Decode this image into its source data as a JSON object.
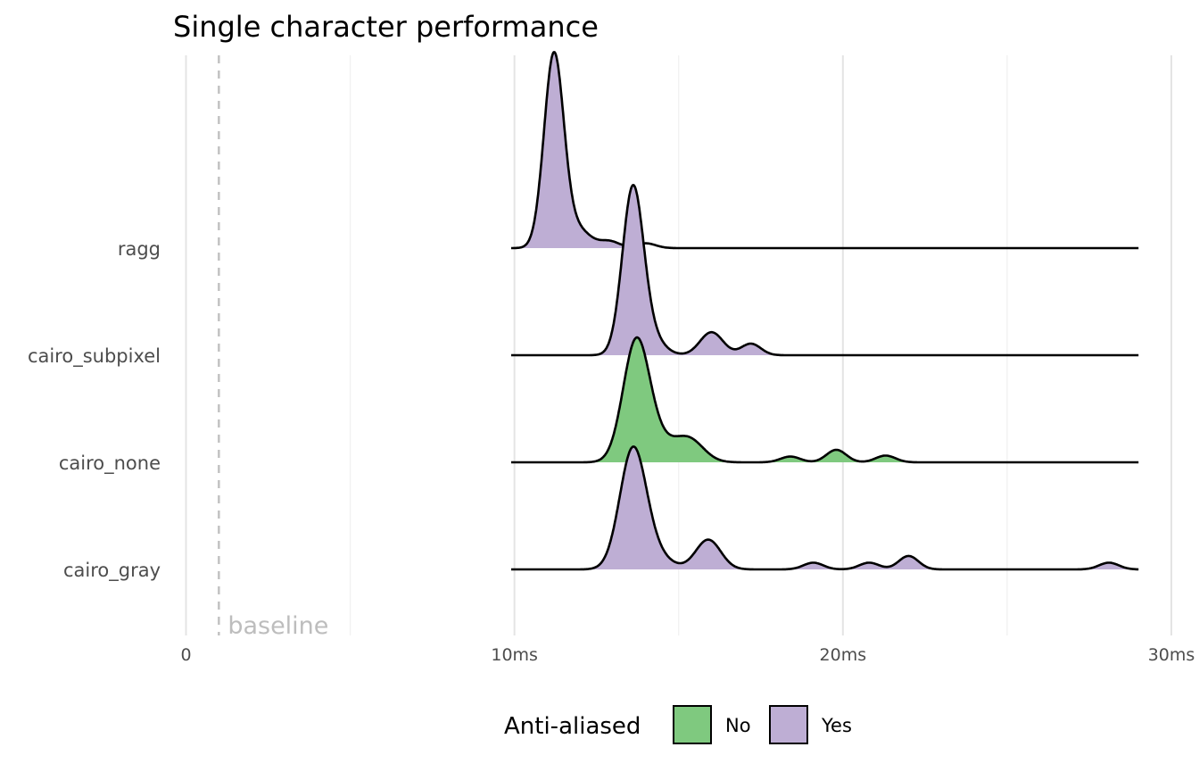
{
  "chart_data": {
    "type": "ridgeline",
    "title": "Single character performance",
    "xlabel": "",
    "ylabel": "",
    "xlim": [
      0,
      30
    ],
    "x_ticks": [
      {
        "value": 0,
        "label": "0"
      },
      {
        "value": 10,
        "label": "10ms"
      },
      {
        "value": 20,
        "label": "20ms"
      },
      {
        "value": 30,
        "label": "30ms"
      }
    ],
    "x_minor": [
      5,
      15,
      25
    ],
    "grid": true,
    "baseline": {
      "value": 1.0,
      "label": "baseline"
    },
    "legend": {
      "title": "Anti-aliased",
      "position": "bottom",
      "items": [
        {
          "label": "No",
          "color": "#7fc97f"
        },
        {
          "label": "Yes",
          "color": "#beaed4"
        }
      ]
    },
    "series": [
      {
        "name": "ragg",
        "anti_aliased": "Yes",
        "fill_range": [
          10.1,
          13.9
        ],
        "x_range": [
          9.9,
          29.0
        ],
        "peaks": [
          {
            "x": 11.2,
            "height": 1.0,
            "width": 0.3
          },
          {
            "x": 11.9,
            "height": 0.1,
            "width": 0.4
          },
          {
            "x": 12.9,
            "height": 0.035,
            "width": 0.3
          },
          {
            "x": 14.0,
            "height": 0.025,
            "width": 0.3
          }
        ]
      },
      {
        "name": "cairo_subpixel",
        "anti_aliased": "Yes",
        "fill_range": [
          12.3,
          17.8
        ],
        "x_range": [
          9.9,
          29.0
        ],
        "peaks": [
          {
            "x": 13.6,
            "height": 0.84,
            "width": 0.32
          },
          {
            "x": 14.1,
            "height": 0.1,
            "width": 0.4
          },
          {
            "x": 16.0,
            "height": 0.12,
            "width": 0.35
          },
          {
            "x": 17.2,
            "height": 0.06,
            "width": 0.3
          }
        ]
      },
      {
        "name": "cairo_none",
        "anti_aliased": "No",
        "fill_range": [
          12.3,
          22.0
        ],
        "x_range": [
          9.9,
          29.0
        ],
        "peaks": [
          {
            "x": 13.7,
            "height": 0.6,
            "width": 0.4
          },
          {
            "x": 14.3,
            "height": 0.1,
            "width": 0.5
          },
          {
            "x": 15.3,
            "height": 0.12,
            "width": 0.45
          },
          {
            "x": 18.4,
            "height": 0.03,
            "width": 0.3
          },
          {
            "x": 19.8,
            "height": 0.065,
            "width": 0.3
          },
          {
            "x": 21.3,
            "height": 0.035,
            "width": 0.3
          }
        ]
      },
      {
        "name": "cairo_gray",
        "anti_aliased": "Yes",
        "fill_range": [
          12.3,
          28.8
        ],
        "x_range": [
          9.9,
          29.0
        ],
        "peaks": [
          {
            "x": 13.6,
            "height": 0.6,
            "width": 0.4
          },
          {
            "x": 14.2,
            "height": 0.08,
            "width": 0.5
          },
          {
            "x": 15.9,
            "height": 0.155,
            "width": 0.38
          },
          {
            "x": 19.1,
            "height": 0.035,
            "width": 0.3
          },
          {
            "x": 20.8,
            "height": 0.035,
            "width": 0.3
          },
          {
            "x": 22.0,
            "height": 0.07,
            "width": 0.3
          },
          {
            "x": 28.1,
            "height": 0.035,
            "width": 0.3
          }
        ]
      }
    ]
  }
}
